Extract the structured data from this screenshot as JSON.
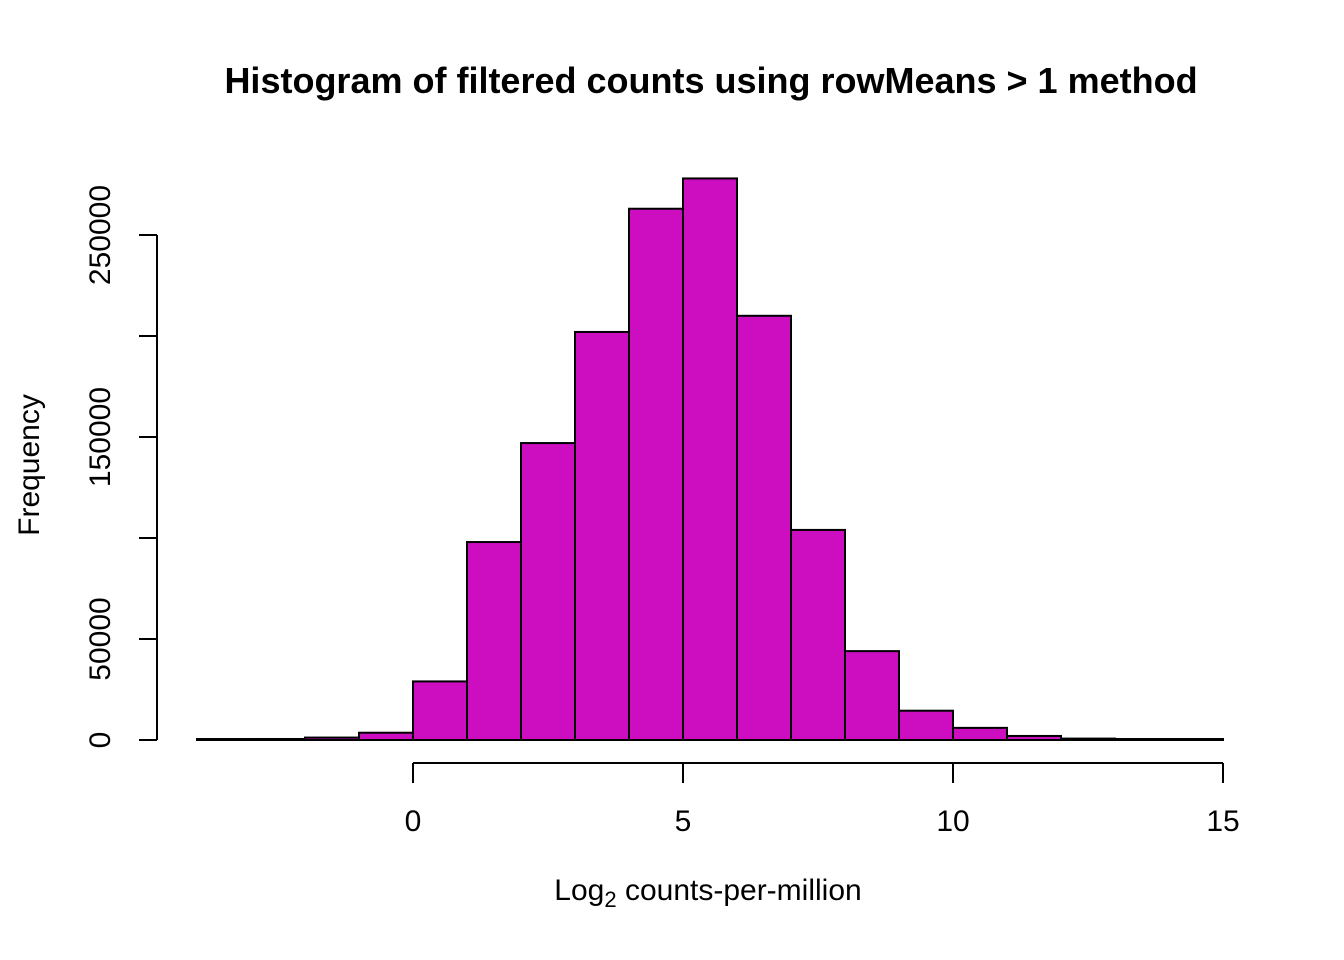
{
  "chart": {
    "title": "Histogram of filtered counts using rowMeans > 1 method",
    "ylabel": "Frequency",
    "xlabel": {
      "prefix": "Log",
      "sub": "2",
      "suffix": " counts-per-million"
    },
    "colors": {
      "bar_fill": "#CC0DC0",
      "bar_stroke": "#000000",
      "axis": "#000000",
      "background": "#FFFFFF"
    }
  },
  "chart_data": {
    "type": "bar",
    "subtype": "histogram",
    "title": "Histogram of filtered counts using rowMeans > 1 method",
    "xlabel": "Log2 counts-per-million",
    "ylabel": "Frequency",
    "bin_edges": [
      -4,
      -3,
      -2,
      -1,
      0,
      1,
      2,
      3,
      4,
      5,
      6,
      7,
      8,
      9,
      10,
      11,
      12,
      13,
      14,
      15
    ],
    "values": [
      150,
      500,
      1200,
      3600,
      29000,
      98000,
      147000,
      202000,
      263000,
      278000,
      210000,
      104000,
      44000,
      14500,
      6000,
      2000,
      700,
      150,
      100
    ],
    "x_ticks": [
      0,
      5,
      10,
      15
    ],
    "x_tick_labels": [
      "0",
      "5",
      "10",
      "15"
    ],
    "y_ticks": [
      0,
      50000,
      100000,
      150000,
      200000,
      250000
    ],
    "y_tick_labels": [
      "0",
      "50000",
      "",
      "150000",
      "",
      "250000"
    ],
    "xlim": [
      -4.7,
      15.7
    ],
    "ylim": [
      0,
      283000
    ],
    "grid": false,
    "legend_position": "none",
    "bar_color": "#CC0DC0"
  }
}
